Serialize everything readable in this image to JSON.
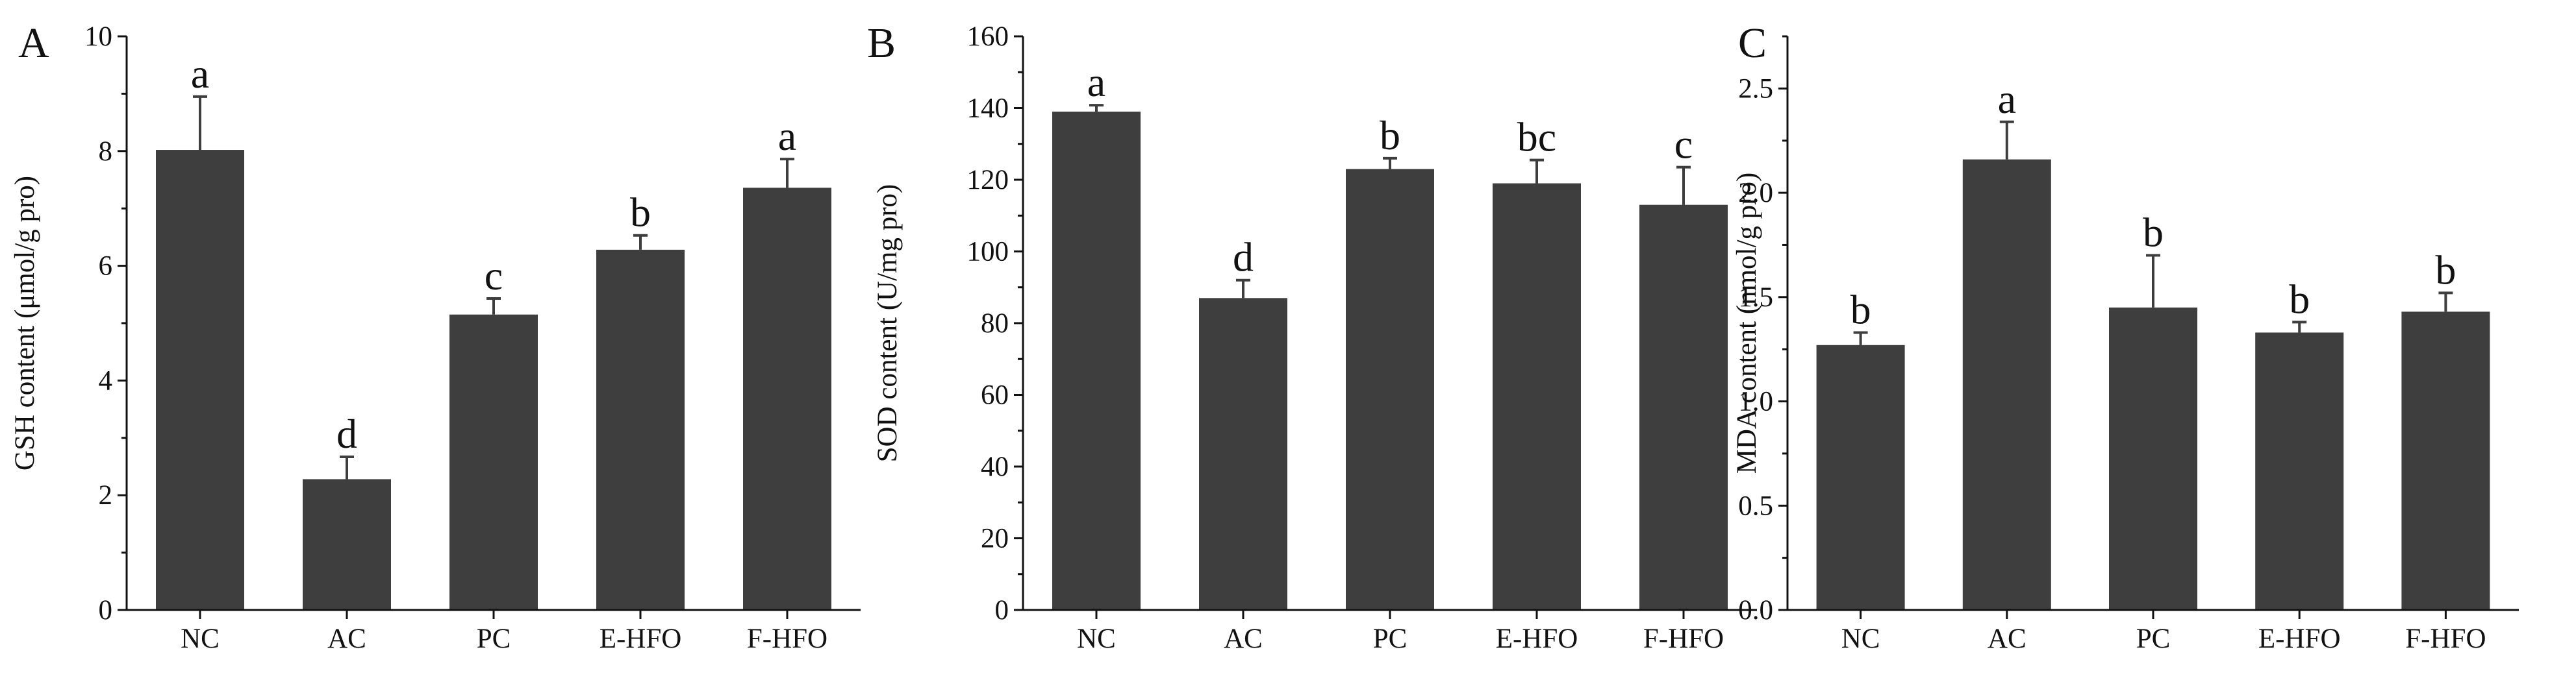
{
  "colors": {
    "bar": "#3d3e3d",
    "axis": "#111111",
    "text": "#111111"
  },
  "chart_data": [
    {
      "type": "bar",
      "panel": "A",
      "title": "",
      "xlabel": "",
      "ylabel": "GSH content (μmol/g pro)",
      "categories": [
        "NC",
        "AC",
        "PC",
        "E-HFO",
        "F-HFO"
      ],
      "values": [
        8.02,
        2.28,
        5.15,
        6.28,
        7.36
      ],
      "errors": [
        0.93,
        0.39,
        0.28,
        0.25,
        0.5
      ],
      "labels": [
        "a",
        "d",
        "c",
        "b",
        "a"
      ],
      "ylim": [
        0,
        10
      ],
      "yticks": [
        0,
        2,
        4,
        6,
        8,
        10
      ],
      "ytick_labels": [
        "0",
        "2",
        "4",
        "6",
        "8",
        "10"
      ],
      "grid": false,
      "legend": "none"
    },
    {
      "type": "bar",
      "panel": "B",
      "title": "",
      "xlabel": "",
      "ylabel": "SOD content (U/mg pro)",
      "categories": [
        "NC",
        "AC",
        "PC",
        "E-HFO",
        "F-HFO"
      ],
      "values": [
        139,
        87,
        123,
        119,
        113
      ],
      "errors": [
        1.8,
        5,
        3,
        6.5,
        10.5
      ],
      "labels": [
        "a",
        "d",
        "b",
        "bc",
        "c"
      ],
      "ylim": [
        0,
        160
      ],
      "yticks": [
        0,
        20,
        40,
        60,
        80,
        100,
        120,
        140,
        160
      ],
      "ytick_labels": [
        "0",
        "20",
        "40",
        "60",
        "80",
        "100",
        "120",
        "140",
        "160"
      ],
      "grid": false,
      "legend": "none"
    },
    {
      "type": "bar",
      "panel": "C",
      "title": "",
      "xlabel": "",
      "ylabel": "MDA content (nmol/g pro)",
      "categories": [
        "NC",
        "AC",
        "PC",
        "E-HFO",
        "F-HFO"
      ],
      "values": [
        1.27,
        2.16,
        1.45,
        1.33,
        1.43
      ],
      "errors": [
        0.06,
        0.18,
        0.25,
        0.05,
        0.09
      ],
      "labels": [
        "b",
        "a",
        "b",
        "b",
        "b"
      ],
      "ylim": [
        0,
        2.75
      ],
      "yticks": [
        0,
        0.5,
        1.0,
        1.5,
        2.0,
        2.5
      ],
      "ytick_labels": [
        "0.0",
        "0.5",
        "1.0",
        "1.5",
        "2.0",
        "2.5"
      ],
      "grid": false,
      "legend": "none"
    }
  ]
}
